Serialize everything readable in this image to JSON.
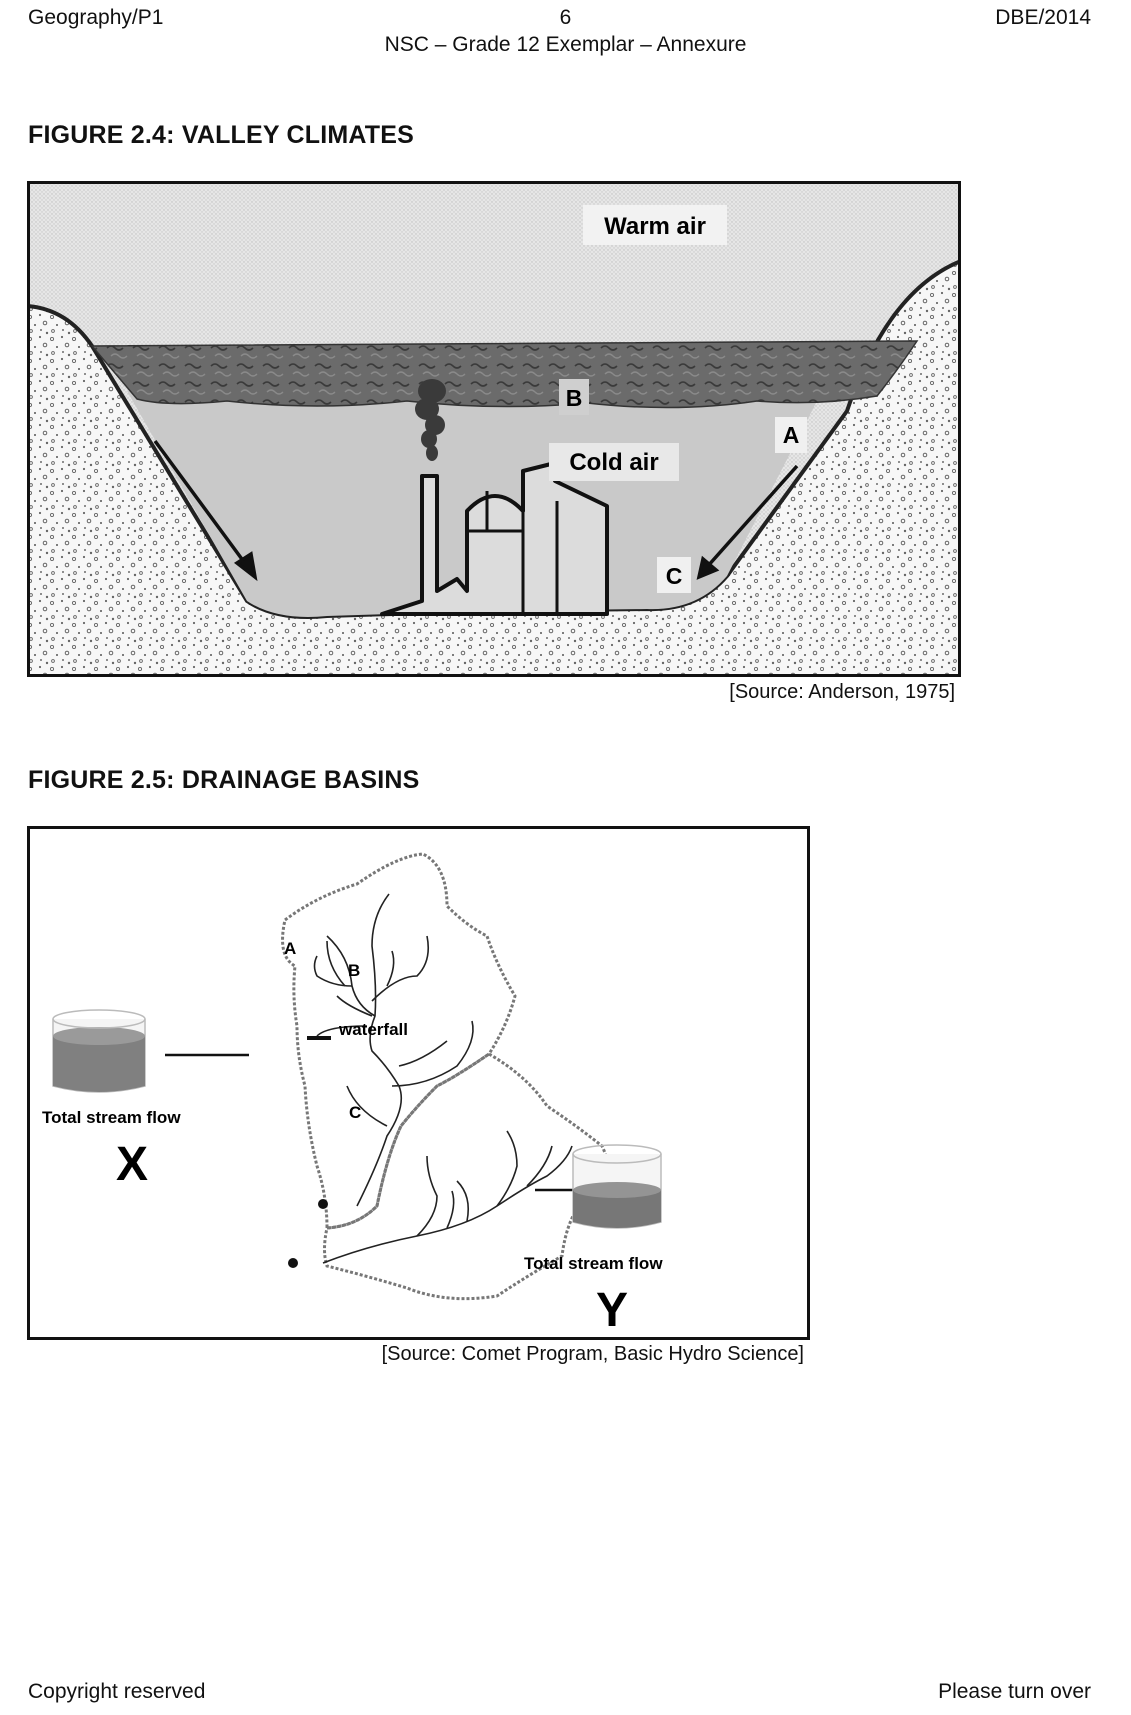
{
  "header": {
    "left": "Geography/P1",
    "page_number": "6",
    "right": "DBE/2014",
    "subtitle": "NSC – Grade 12 Exemplar – Annexure"
  },
  "figure_2_4": {
    "title": "FIGURE 2.4:  VALLEY CLIMATES",
    "labels": {
      "warm_air": "Warm air",
      "cold_air": "Cold air",
      "a": "A",
      "b": "B",
      "c": "C"
    },
    "source": "[Source: Anderson, 1975]"
  },
  "figure_2_5": {
    "title": "FIGURE 2.5:  DRAINAGE BASINS",
    "labels": {
      "a": "A",
      "b": "B",
      "c": "C",
      "waterfall": "waterfall",
      "flow_x_label": "Total stream flow",
      "x": "X",
      "flow_y_label": "Total stream flow",
      "y": "Y"
    },
    "source": "[Source: Comet Program, Basic Hydro Science]"
  },
  "footer": {
    "left": "Copyright reserved",
    "right": "Please turn over"
  }
}
